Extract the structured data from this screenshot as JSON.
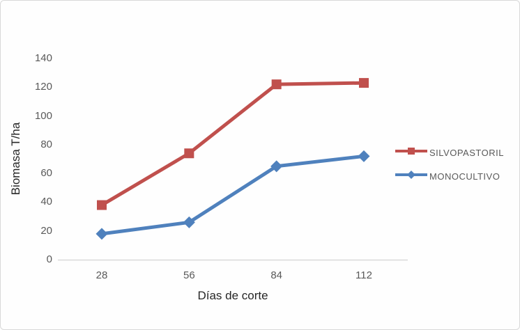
{
  "chart_data": {
    "type": "line",
    "xlabel": "Días de corte",
    "ylabel": "Biomasa T/ha",
    "categories": [
      28,
      56,
      84,
      112
    ],
    "series": [
      {
        "name": "SILVOPASTORIL",
        "color": "#C0504D",
        "marker": "square",
        "values": [
          38,
          74,
          122,
          123
        ]
      },
      {
        "name": "MONOCULTIVO",
        "color": "#4F81BD",
        "marker": "diamond",
        "values": [
          18,
          26,
          65,
          72
        ]
      }
    ],
    "ylim": [
      0,
      140
    ],
    "yticks": [
      0,
      20,
      40,
      60,
      80,
      100,
      120,
      140
    ],
    "grid": false,
    "legend_position": "right",
    "colors": {
      "axis_line": "#D9D9D9",
      "tick_labels": "#595959",
      "axis_titles": "#262626",
      "frame_border": "#D8D8D8",
      "background": "#FFFFFF"
    }
  }
}
